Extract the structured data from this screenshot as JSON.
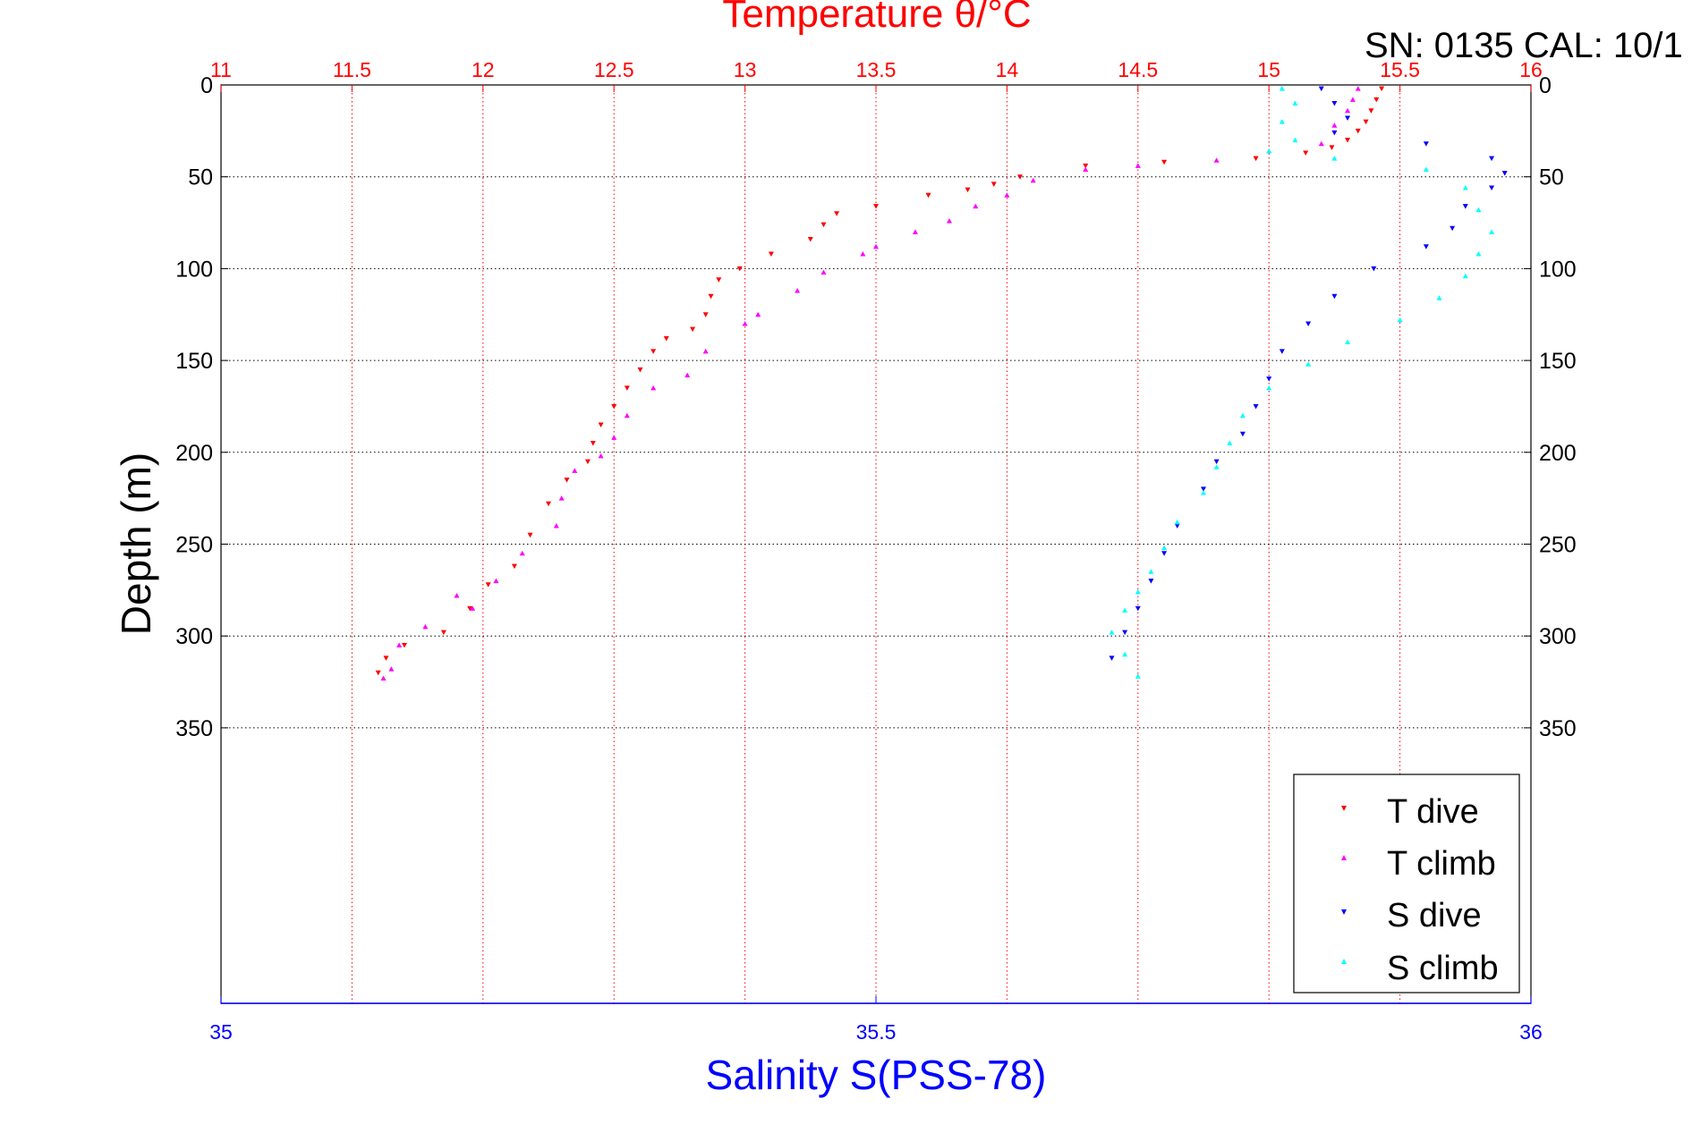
{
  "header": {
    "serial_text": "SN: 0135  CAL: 10/1"
  },
  "colors": {
    "t_dive": "#ff0000",
    "t_climb": "#ff00ff",
    "s_dive": "#0000ff",
    "s_climb": "#00ffff",
    "temp_axis": "#ff0000",
    "sal_axis": "#0000ff",
    "depth_axis": "#000000"
  },
  "chart_data": {
    "type": "scatter",
    "title": "Temperature θ/°C",
    "xlabel": "Salinity S(PSS-78)",
    "ylabel": "Depth (m)",
    "x_temp": {
      "range": [
        11,
        16
      ],
      "ticks": [
        "11",
        "11.5",
        "12",
        "12.5",
        "13",
        "13.5",
        "14",
        "14.5",
        "15",
        "15.5",
        "16"
      ],
      "grid": true
    },
    "x_sal": {
      "range": [
        35,
        36
      ],
      "ticks": [
        "35",
        "35.5",
        "36"
      ]
    },
    "y_depth": {
      "range": [
        0,
        500
      ],
      "reversed": true,
      "ticks": [
        "0",
        "50",
        "100",
        "150",
        "200",
        "250",
        "300",
        "350"
      ],
      "grid": true
    },
    "legend": {
      "position": "bottom-right",
      "entries": [
        "T dive",
        "T climb",
        "S dive",
        "S climb"
      ]
    },
    "series": [
      {
        "name": "T dive",
        "axis": "temperature",
        "marker": "triangle-down",
        "points": [
          [
            15.43,
            2
          ],
          [
            15.41,
            8
          ],
          [
            15.39,
            14
          ],
          [
            15.37,
            20
          ],
          [
            15.34,
            25
          ],
          [
            15.3,
            30
          ],
          [
            15.24,
            34
          ],
          [
            15.14,
            37
          ],
          [
            14.95,
            40
          ],
          [
            14.6,
            42
          ],
          [
            14.3,
            44
          ],
          [
            14.05,
            50
          ],
          [
            13.95,
            54
          ],
          [
            13.85,
            57
          ],
          [
            13.7,
            60
          ],
          [
            13.5,
            66
          ],
          [
            13.35,
            70
          ],
          [
            13.3,
            76
          ],
          [
            13.25,
            84
          ],
          [
            13.1,
            92
          ],
          [
            12.98,
            100
          ],
          [
            12.9,
            106
          ],
          [
            12.87,
            115
          ],
          [
            12.85,
            125
          ],
          [
            12.8,
            133
          ],
          [
            12.7,
            138
          ],
          [
            12.65,
            145
          ],
          [
            12.6,
            155
          ],
          [
            12.55,
            165
          ],
          [
            12.5,
            175
          ],
          [
            12.45,
            185
          ],
          [
            12.42,
            195
          ],
          [
            12.4,
            205
          ],
          [
            12.32,
            215
          ],
          [
            12.25,
            228
          ],
          [
            12.18,
            245
          ],
          [
            12.12,
            262
          ],
          [
            12.02,
            272
          ],
          [
            11.95,
            285
          ],
          [
            11.85,
            298
          ],
          [
            11.7,
            305
          ],
          [
            11.63,
            312
          ],
          [
            11.6,
            320
          ]
        ]
      },
      {
        "name": "T climb",
        "axis": "temperature",
        "marker": "triangle-up",
        "points": [
          [
            11.62,
            323
          ],
          [
            11.65,
            318
          ],
          [
            11.68,
            305
          ],
          [
            11.78,
            295
          ],
          [
            11.9,
            278
          ],
          [
            11.96,
            285
          ],
          [
            12.05,
            270
          ],
          [
            12.15,
            255
          ],
          [
            12.28,
            240
          ],
          [
            12.3,
            225
          ],
          [
            12.35,
            210
          ],
          [
            12.45,
            202
          ],
          [
            12.5,
            192
          ],
          [
            12.55,
            180
          ],
          [
            12.65,
            165
          ],
          [
            12.78,
            158
          ],
          [
            12.85,
            145
          ],
          [
            13.0,
            130
          ],
          [
            13.05,
            125
          ],
          [
            13.2,
            112
          ],
          [
            13.3,
            102
          ],
          [
            13.45,
            92
          ],
          [
            13.5,
            88
          ],
          [
            13.65,
            80
          ],
          [
            13.78,
            74
          ],
          [
            13.88,
            66
          ],
          [
            14.0,
            60
          ],
          [
            14.1,
            52
          ],
          [
            14.3,
            46
          ],
          [
            14.5,
            44
          ],
          [
            14.8,
            41
          ],
          [
            15.0,
            36
          ],
          [
            15.2,
            32
          ],
          [
            15.25,
            22
          ],
          [
            15.3,
            14
          ],
          [
            15.32,
            8
          ],
          [
            15.34,
            2
          ]
        ]
      },
      {
        "name": "S dive",
        "axis": "salinity",
        "marker": "triangle-down",
        "points": [
          [
            35.84,
            2
          ],
          [
            35.85,
            10
          ],
          [
            35.86,
            18
          ],
          [
            35.85,
            26
          ],
          [
            35.92,
            32
          ],
          [
            35.97,
            40
          ],
          [
            35.98,
            48
          ],
          [
            35.97,
            56
          ],
          [
            35.95,
            66
          ],
          [
            35.94,
            78
          ],
          [
            35.92,
            88
          ],
          [
            35.88,
            100
          ],
          [
            35.85,
            115
          ],
          [
            35.83,
            130
          ],
          [
            35.81,
            145
          ],
          [
            35.8,
            160
          ],
          [
            35.79,
            175
          ],
          [
            35.78,
            190
          ],
          [
            35.76,
            205
          ],
          [
            35.75,
            220
          ],
          [
            35.73,
            240
          ],
          [
            35.72,
            255
          ],
          [
            35.71,
            270
          ],
          [
            35.7,
            285
          ],
          [
            35.69,
            298
          ],
          [
            35.68,
            312
          ]
        ]
      },
      {
        "name": "S climb",
        "axis": "salinity",
        "marker": "triangle-up",
        "points": [
          [
            35.7,
            322
          ],
          [
            35.69,
            310
          ],
          [
            35.68,
            298
          ],
          [
            35.69,
            286
          ],
          [
            35.7,
            276
          ],
          [
            35.71,
            265
          ],
          [
            35.72,
            252
          ],
          [
            35.73,
            238
          ],
          [
            35.75,
            222
          ],
          [
            35.76,
            208
          ],
          [
            35.77,
            195
          ],
          [
            35.78,
            180
          ],
          [
            35.8,
            165
          ],
          [
            35.83,
            152
          ],
          [
            35.86,
            140
          ],
          [
            35.9,
            128
          ],
          [
            35.93,
            116
          ],
          [
            35.95,
            104
          ],
          [
            35.96,
            92
          ],
          [
            35.97,
            80
          ],
          [
            35.96,
            68
          ],
          [
            35.95,
            56
          ],
          [
            35.92,
            46
          ],
          [
            35.85,
            40
          ],
          [
            35.8,
            36
          ],
          [
            35.82,
            30
          ],
          [
            35.81,
            20
          ],
          [
            35.82,
            10
          ],
          [
            35.81,
            2
          ]
        ]
      }
    ]
  }
}
